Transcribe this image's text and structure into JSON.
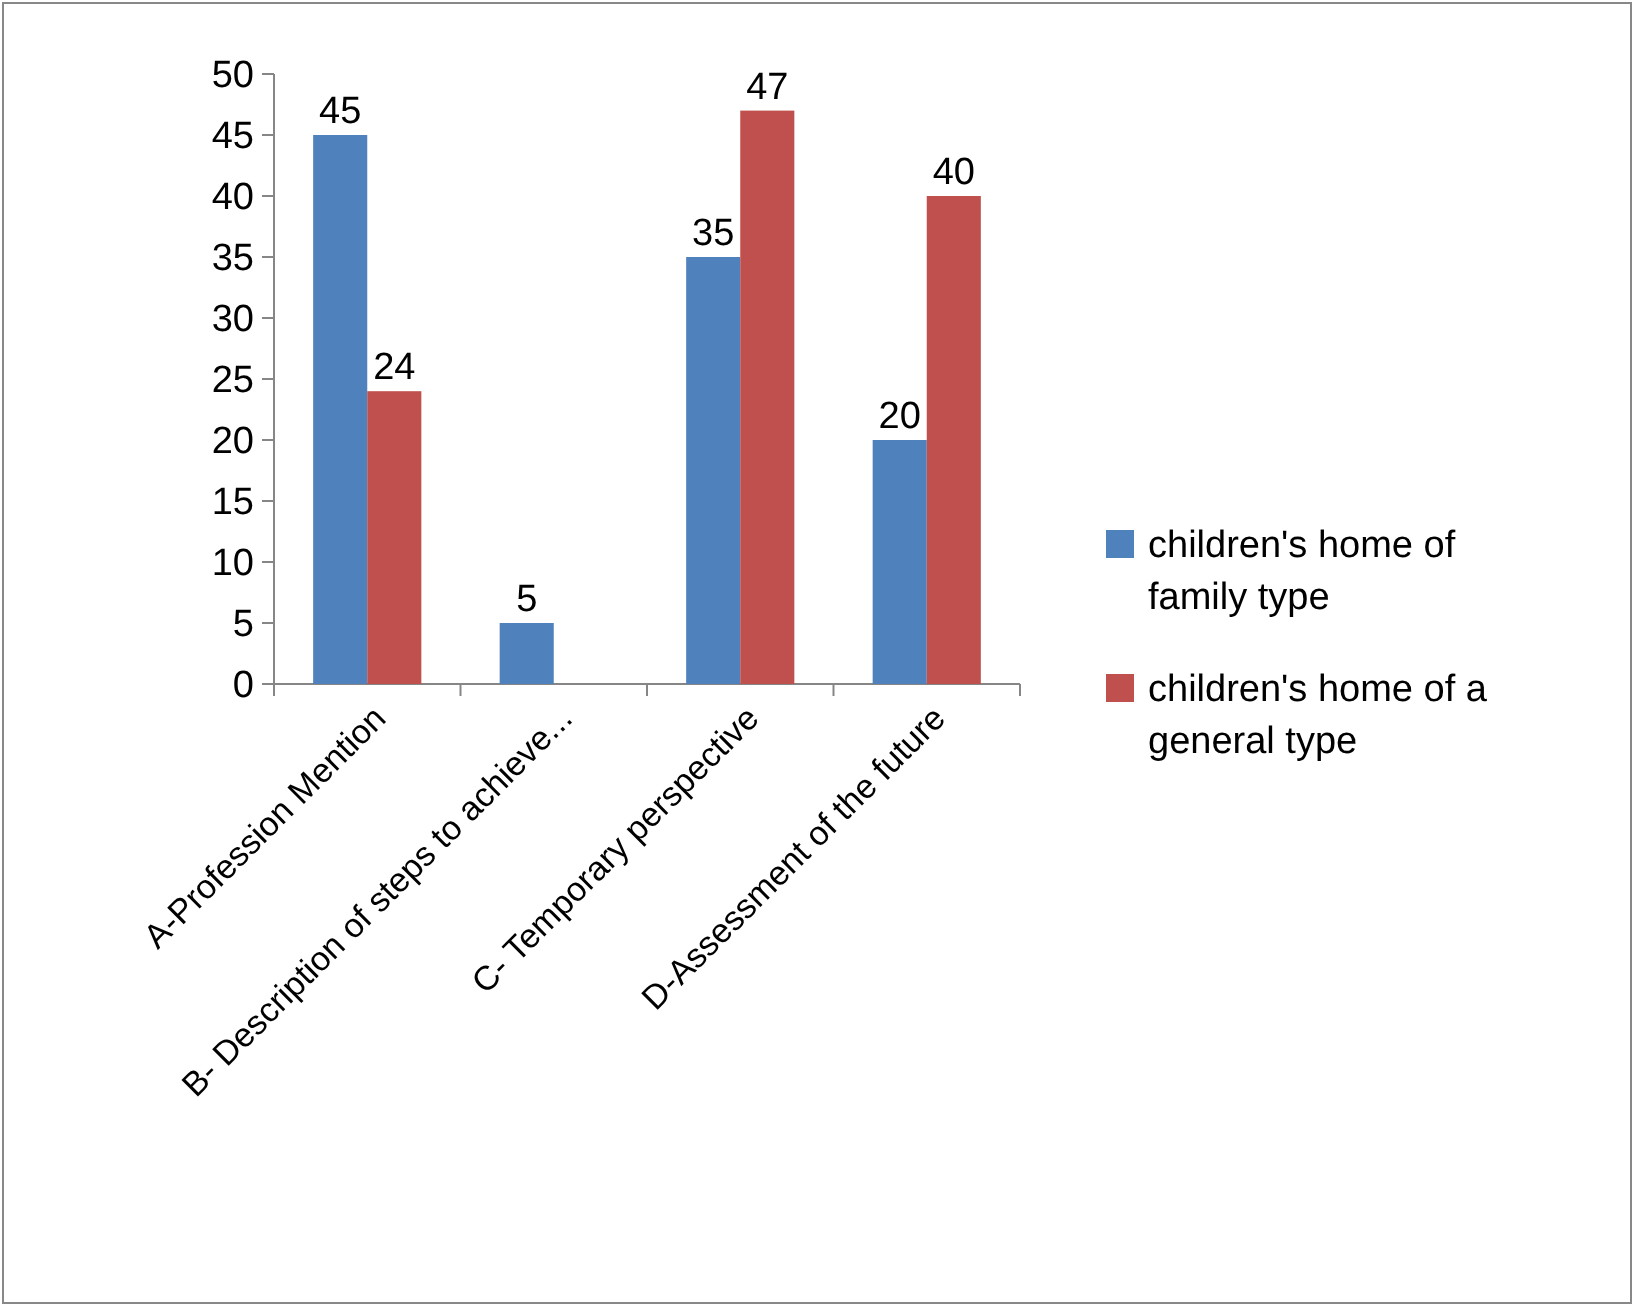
{
  "chart_data": {
    "type": "bar",
    "categories": [
      "A-Profession Mention",
      "B- Description of steps to achieve...",
      "C- Temporary perspective",
      "D-Assessment of the future"
    ],
    "series": [
      {
        "name": "children's home of family type",
        "color": "#4f81bd",
        "values": [
          45,
          5,
          35,
          20
        ]
      },
      {
        "name": "children's home of a general type",
        "color": "#c0504d",
        "values": [
          24,
          null,
          47,
          40
        ]
      }
    ],
    "ylim": [
      0,
      50
    ],
    "yticks": [
      0,
      5,
      10,
      15,
      20,
      25,
      30,
      35,
      40,
      45,
      50
    ],
    "data_labels": true,
    "legend": "right",
    "grid": false
  }
}
